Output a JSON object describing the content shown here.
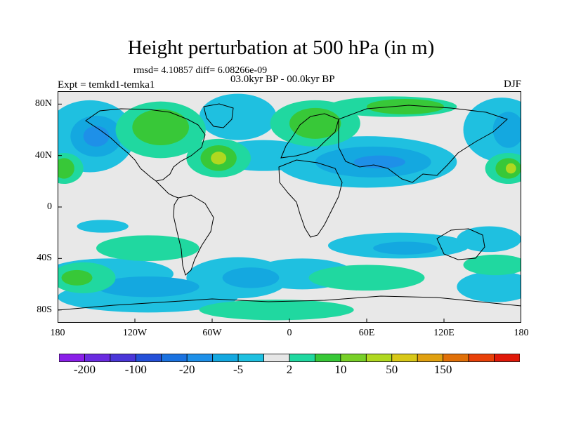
{
  "title": "Height perturbation at 500 hPa (in m)",
  "stats": "rmsd= 4.10857 diff= 6.08266e-09",
  "experiment": "Expt = temkd1-temka1",
  "period": "03.0kyr BP - 00.0kyr BP",
  "season": "DJF",
  "map": {
    "projection": "cylindrical-equidistant",
    "lon_range": [
      -180,
      180
    ],
    "lat_range": [
      -90,
      90
    ],
    "y_ticks": [
      {
        "lat": 80,
        "label": "80N"
      },
      {
        "lat": 40,
        "label": "40N"
      },
      {
        "lat": 0,
        "label": "0"
      },
      {
        "lat": -40,
        "label": "40S"
      },
      {
        "lat": -80,
        "label": "80S"
      }
    ],
    "x_ticks": [
      {
        "lon": -180,
        "label": "180"
      },
      {
        "lon": -120,
        "label": "120W"
      },
      {
        "lon": -60,
        "label": "60W"
      },
      {
        "lon": 0,
        "label": "0"
      },
      {
        "lon": 60,
        "label": "60E"
      },
      {
        "lon": 120,
        "label": "120E"
      },
      {
        "lon": 180,
        "label": "180"
      }
    ],
    "background_color": "#e8e8e8"
  },
  "colorbar": {
    "colors": [
      "#8a1fe8",
      "#6a2be0",
      "#4a36d8",
      "#2450d8",
      "#1a72e0",
      "#1e90e8",
      "#14a8e0",
      "#1fc0e0",
      "#e6e6e6",
      "#20d8a0",
      "#38c838",
      "#78d028",
      "#b0d820",
      "#d8c818",
      "#e0a010",
      "#e07008",
      "#e84008",
      "#e01808"
    ],
    "labels": [
      {
        "boundary": 1,
        "text": "-200"
      },
      {
        "boundary": 3,
        "text": "-100"
      },
      {
        "boundary": 5,
        "text": "-20"
      },
      {
        "boundary": 7,
        "text": "-5"
      },
      {
        "boundary": 9,
        "text": "2"
      },
      {
        "boundary": 11,
        "text": "10"
      },
      {
        "boundary": 13,
        "text": "50"
      },
      {
        "boundary": 15,
        "text": "150"
      }
    ]
  },
  "fields": [
    {
      "kind": "negative",
      "color": "#1fc0e0",
      "regions": [
        {
          "lon": -155,
          "lat": 55,
          "rlon": 35,
          "rlat": 28
        },
        {
          "lon": -145,
          "lat": -15,
          "rlon": 20,
          "rlat": 5
        },
        {
          "lon": -40,
          "lat": 70,
          "rlon": 30,
          "rlat": 18
        },
        {
          "lon": -20,
          "lat": 40,
          "rlon": 40,
          "rlat": 12
        },
        {
          "lon": 60,
          "lat": 35,
          "rlon": 70,
          "rlat": 20
        },
        {
          "lon": 165,
          "lat": 60,
          "rlon": 30,
          "rlat": 25
        },
        {
          "lon": -140,
          "lat": -52,
          "rlon": 50,
          "rlat": 12
        },
        {
          "lon": -110,
          "lat": -70,
          "rlon": 70,
          "rlat": 12
        },
        {
          "lon": -40,
          "lat": -55,
          "rlon": 40,
          "rlat": 16
        },
        {
          "lon": 10,
          "lat": -52,
          "rlon": 40,
          "rlat": 12
        },
        {
          "lon": 85,
          "lat": -30,
          "rlon": 55,
          "rlat": 10
        },
        {
          "lon": 155,
          "lat": -25,
          "rlon": 25,
          "rlat": 10
        },
        {
          "lon": 160,
          "lat": -62,
          "rlon": 30,
          "rlat": 12
        }
      ]
    },
    {
      "kind": "negative",
      "color": "#14a8e0",
      "regions": [
        {
          "lon": -150,
          "lat": 55,
          "rlon": 20,
          "rlat": 16
        },
        {
          "lon": 65,
          "lat": 35,
          "rlon": 45,
          "rlat": 12
        },
        {
          "lon": 170,
          "lat": 60,
          "rlon": 12,
          "rlat": 14
        },
        {
          "lon": -110,
          "lat": -62,
          "rlon": 40,
          "rlat": 8
        },
        {
          "lon": -30,
          "lat": -55,
          "rlon": 22,
          "rlat": 8
        },
        {
          "lon": 90,
          "lat": -32,
          "rlon": 25,
          "rlat": 5
        }
      ]
    },
    {
      "kind": "negative",
      "color": "#1e90e8",
      "regions": [
        {
          "lon": -150,
          "lat": 55,
          "rlon": 10,
          "rlat": 8
        },
        {
          "lon": 70,
          "lat": 35,
          "rlon": 20,
          "rlat": 5
        }
      ]
    },
    {
      "kind": "positive",
      "color": "#20d8a0",
      "regions": [
        {
          "lon": -100,
          "lat": 60,
          "rlon": 35,
          "rlat": 22
        },
        {
          "lon": -55,
          "lat": 38,
          "rlon": 25,
          "rlat": 15
        },
        {
          "lon": 20,
          "lat": 65,
          "rlon": 35,
          "rlat": 18
        },
        {
          "lon": 80,
          "lat": 78,
          "rlon": 50,
          "rlat": 8
        },
        {
          "lon": -175,
          "lat": 30,
          "rlon": 15,
          "rlat": 12
        },
        {
          "lon": 170,
          "lat": 30,
          "rlon": 18,
          "rlat": 12
        },
        {
          "lon": -110,
          "lat": -32,
          "rlon": 40,
          "rlat": 10
        },
        {
          "lon": -160,
          "lat": -55,
          "rlon": 25,
          "rlat": 12
        },
        {
          "lon": 60,
          "lat": -55,
          "rlon": 45,
          "rlat": 10
        },
        {
          "lon": -10,
          "lat": -80,
          "rlon": 60,
          "rlat": 8
        },
        {
          "lon": 160,
          "lat": -45,
          "rlon": 25,
          "rlat": 8
        }
      ]
    },
    {
      "kind": "positive",
      "color": "#38c838",
      "regions": [
        {
          "lon": -100,
          "lat": 62,
          "rlon": 22,
          "rlat": 14
        },
        {
          "lon": -55,
          "lat": 38,
          "rlon": 14,
          "rlat": 10
        },
        {
          "lon": 20,
          "lat": 65,
          "rlon": 20,
          "rlat": 12
        },
        {
          "lon": 90,
          "lat": 78,
          "rlon": 30,
          "rlat": 6
        },
        {
          "lon": -175,
          "lat": 30,
          "rlon": 8,
          "rlat": 8
        },
        {
          "lon": 170,
          "lat": 30,
          "rlon": 10,
          "rlat": 8
        },
        {
          "lon": -165,
          "lat": -55,
          "rlon": 12,
          "rlat": 6
        }
      ]
    },
    {
      "kind": "positive",
      "color": "#b0d820",
      "regions": [
        {
          "lon": -55,
          "lat": 38,
          "rlon": 6,
          "rlat": 5
        },
        {
          "lon": 172,
          "lat": 30,
          "rlon": 4,
          "rlat": 4
        }
      ]
    }
  ]
}
